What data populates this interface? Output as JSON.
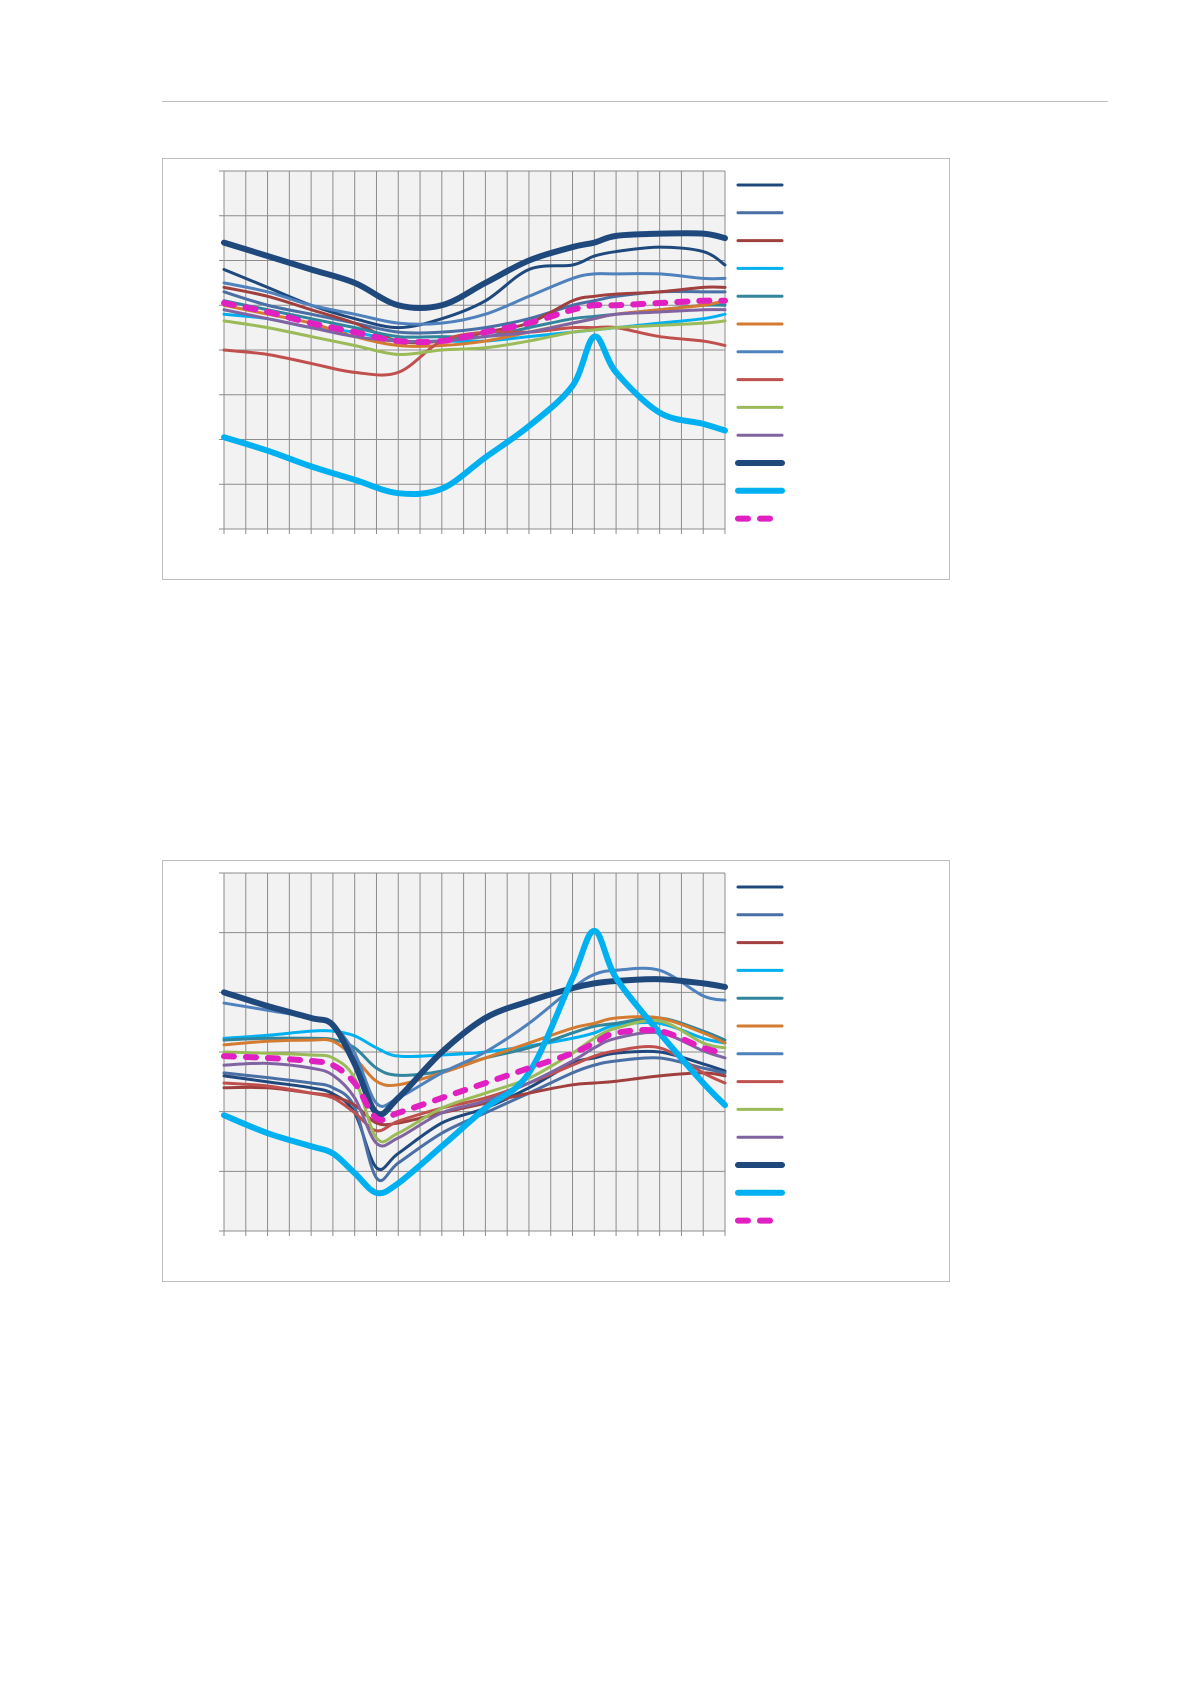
{
  "chart_data": [
    {
      "type": "line",
      "title": "",
      "xlabel": "",
      "ylabel": "",
      "ylim": [
        0,
        8
      ],
      "xlim": [
        0,
        23
      ],
      "grid": true,
      "legend": "right",
      "x": [
        0,
        2,
        4,
        6,
        8,
        10,
        12,
        14,
        16,
        17,
        18,
        20,
        22,
        23
      ],
      "series": [
        {
          "name": "",
          "color": "#1F497D",
          "style": "thin",
          "values": [
            5.8,
            5.4,
            5.0,
            4.7,
            4.5,
            4.7,
            5.1,
            5.8,
            5.9,
            6.1,
            6.2,
            6.3,
            6.2,
            5.9
          ]
        },
        {
          "name": "",
          "color": "#4A6FA5",
          "style": "thin",
          "values": [
            5.3,
            5.0,
            4.8,
            4.6,
            4.4,
            4.4,
            4.5,
            4.7,
            5.0,
            5.1,
            5.2,
            5.3,
            5.3,
            5.3
          ]
        },
        {
          "name": "",
          "color": "#A0403E",
          "style": "thin",
          "values": [
            5.4,
            5.2,
            4.9,
            4.6,
            4.2,
            4.2,
            4.4,
            4.6,
            5.1,
            5.2,
            5.25,
            5.3,
            5.4,
            5.4
          ]
        },
        {
          "name": "",
          "color": "#00B0F0",
          "style": "thin",
          "values": [
            4.8,
            4.7,
            4.5,
            4.4,
            4.2,
            4.2,
            4.2,
            4.3,
            4.4,
            4.45,
            4.5,
            4.6,
            4.7,
            4.8
          ]
        },
        {
          "name": "",
          "color": "#31859C",
          "style": "thin",
          "values": [
            5.1,
            4.9,
            4.7,
            4.5,
            4.3,
            4.3,
            4.3,
            4.5,
            4.7,
            4.75,
            4.8,
            4.9,
            5.0,
            5.0
          ]
        },
        {
          "name": "",
          "color": "#D47B32",
          "style": "thin",
          "values": [
            5.0,
            4.8,
            4.6,
            4.3,
            4.1,
            4.1,
            4.2,
            4.4,
            4.6,
            4.7,
            4.8,
            4.9,
            5.0,
            5.1
          ]
        },
        {
          "name": "",
          "color": "#4F81BD",
          "style": "thin",
          "values": [
            5.5,
            5.3,
            5.0,
            4.8,
            4.6,
            4.6,
            4.8,
            5.2,
            5.6,
            5.7,
            5.7,
            5.7,
            5.6,
            5.6
          ]
        },
        {
          "name": "",
          "color": "#C0504D",
          "style": "thin",
          "values": [
            4.0,
            3.9,
            3.7,
            3.5,
            3.5,
            4.2,
            4.4,
            4.4,
            4.5,
            4.5,
            4.5,
            4.3,
            4.2,
            4.1
          ]
        },
        {
          "name": "",
          "color": "#9BBB59",
          "style": "thin",
          "values": [
            4.65,
            4.5,
            4.3,
            4.1,
            3.9,
            4.0,
            4.05,
            4.2,
            4.4,
            4.45,
            4.5,
            4.55,
            4.6,
            4.65
          ]
        },
        {
          "name": "",
          "color": "#8064A2",
          "style": "thin",
          "values": [
            4.9,
            4.7,
            4.5,
            4.3,
            4.2,
            4.2,
            4.3,
            4.4,
            4.6,
            4.7,
            4.8,
            4.85,
            4.9,
            4.9
          ]
        },
        {
          "name": "",
          "color": "#1F497D",
          "style": "thick",
          "values": [
            6.4,
            6.1,
            5.8,
            5.5,
            5.0,
            5.0,
            5.5,
            6.0,
            6.3,
            6.4,
            6.55,
            6.6,
            6.6,
            6.5
          ]
        },
        {
          "name": "",
          "color": "#00B0F0",
          "style": "thick",
          "values": [
            2.05,
            1.75,
            1.4,
            1.1,
            0.8,
            0.9,
            1.6,
            2.3,
            3.2,
            4.3,
            3.5,
            2.6,
            2.35,
            2.2
          ]
        },
        {
          "name": "",
          "color": "#E020C0",
          "style": "dashed",
          "values": [
            5.05,
            4.85,
            4.6,
            4.4,
            4.2,
            4.2,
            4.4,
            4.6,
            4.9,
            5.0,
            5.0,
            5.05,
            5.1,
            5.1
          ]
        }
      ]
    },
    {
      "type": "line",
      "title": "",
      "xlabel": "",
      "ylabel": "",
      "ylim": [
        0,
        6
      ],
      "xlim": [
        0,
        23
      ],
      "grid": true,
      "legend": "right",
      "x": [
        0,
        2,
        4,
        5,
        6,
        7,
        8,
        10,
        12,
        14,
        16,
        17,
        18,
        20,
        22,
        23
      ],
      "series": [
        {
          "name": "",
          "color": "#1F497D",
          "style": "thin",
          "values": [
            2.6,
            2.5,
            2.4,
            2.3,
            1.98,
            1.06,
            1.3,
            1.81,
            2.06,
            2.4,
            2.81,
            2.9,
            2.98,
            3.0,
            2.8,
            2.68
          ]
        },
        {
          "name": "",
          "color": "#4A6FA5",
          "style": "thin",
          "values": [
            2.65,
            2.57,
            2.48,
            2.4,
            2.07,
            0.89,
            1.14,
            1.64,
            1.98,
            2.31,
            2.65,
            2.78,
            2.85,
            2.9,
            2.73,
            2.65
          ]
        },
        {
          "name": "",
          "color": "#A0403E",
          "style": "thin",
          "values": [
            2.4,
            2.4,
            2.31,
            2.26,
            2.11,
            1.81,
            1.81,
            1.98,
            2.14,
            2.31,
            2.45,
            2.48,
            2.51,
            2.6,
            2.65,
            2.6
          ]
        },
        {
          "name": "",
          "color": "#00B0F0",
          "style": "thin",
          "values": [
            3.23,
            3.28,
            3.35,
            3.35,
            3.27,
            3.07,
            2.93,
            2.95,
            3.0,
            3.1,
            3.23,
            3.32,
            3.45,
            3.48,
            3.23,
            3.15
          ]
        },
        {
          "name": "",
          "color": "#31859C",
          "style": "thin",
          "values": [
            3.2,
            3.23,
            3.23,
            3.21,
            3.07,
            2.73,
            2.61,
            2.68,
            2.9,
            3.07,
            3.32,
            3.43,
            3.48,
            3.57,
            3.35,
            3.2
          ]
        },
        {
          "name": "",
          "color": "#D47B32",
          "style": "thin",
          "values": [
            3.12,
            3.18,
            3.2,
            3.18,
            2.9,
            2.51,
            2.45,
            2.65,
            2.9,
            3.15,
            3.4,
            3.48,
            3.57,
            3.57,
            3.32,
            3.15
          ]
        },
        {
          "name": "",
          "color": "#4F81BD",
          "style": "thin",
          "values": [
            3.82,
            3.7,
            3.57,
            3.45,
            2.98,
            2.14,
            2.23,
            2.65,
            3.0,
            3.48,
            4.07,
            4.3,
            4.37,
            4.37,
            3.94,
            3.87
          ]
        },
        {
          "name": "",
          "color": "#C0504D",
          "style": "thin",
          "values": [
            2.48,
            2.43,
            2.31,
            2.23,
            1.98,
            1.68,
            1.84,
            2.06,
            2.23,
            2.48,
            2.78,
            2.93,
            3.02,
            3.07,
            2.65,
            2.48
          ]
        },
        {
          "name": "",
          "color": "#9BBB59",
          "style": "thin",
          "values": [
            3.0,
            2.98,
            2.95,
            2.9,
            2.56,
            1.56,
            1.64,
            2.06,
            2.31,
            2.56,
            2.98,
            3.23,
            3.4,
            3.52,
            3.15,
            3.07
          ]
        },
        {
          "name": "",
          "color": "#8064A2",
          "style": "thin",
          "values": [
            2.78,
            2.81,
            2.73,
            2.61,
            2.23,
            1.47,
            1.56,
            1.98,
            2.18,
            2.48,
            2.85,
            3.07,
            3.23,
            3.32,
            3.02,
            2.9
          ]
        },
        {
          "name": "",
          "color": "#1F497D",
          "style": "thick",
          "values": [
            4.0,
            3.77,
            3.57,
            3.45,
            2.8,
            1.98,
            2.23,
            3.0,
            3.57,
            3.85,
            4.07,
            4.15,
            4.19,
            4.22,
            4.15,
            4.09
          ]
        },
        {
          "name": "",
          "color": "#00B0F0",
          "style": "thick",
          "values": [
            1.94,
            1.64,
            1.42,
            1.3,
            0.97,
            0.64,
            0.8,
            1.42,
            2.06,
            2.65,
            4.24,
            5.03,
            4.24,
            3.32,
            2.48,
            2.11
          ]
        },
        {
          "name": "",
          "color": "#E020C0",
          "style": "dashed",
          "values": [
            2.93,
            2.9,
            2.85,
            2.78,
            2.48,
            1.89,
            1.98,
            2.23,
            2.48,
            2.73,
            2.98,
            3.15,
            3.32,
            3.35,
            3.07,
            2.98
          ]
        }
      ]
    }
  ]
}
